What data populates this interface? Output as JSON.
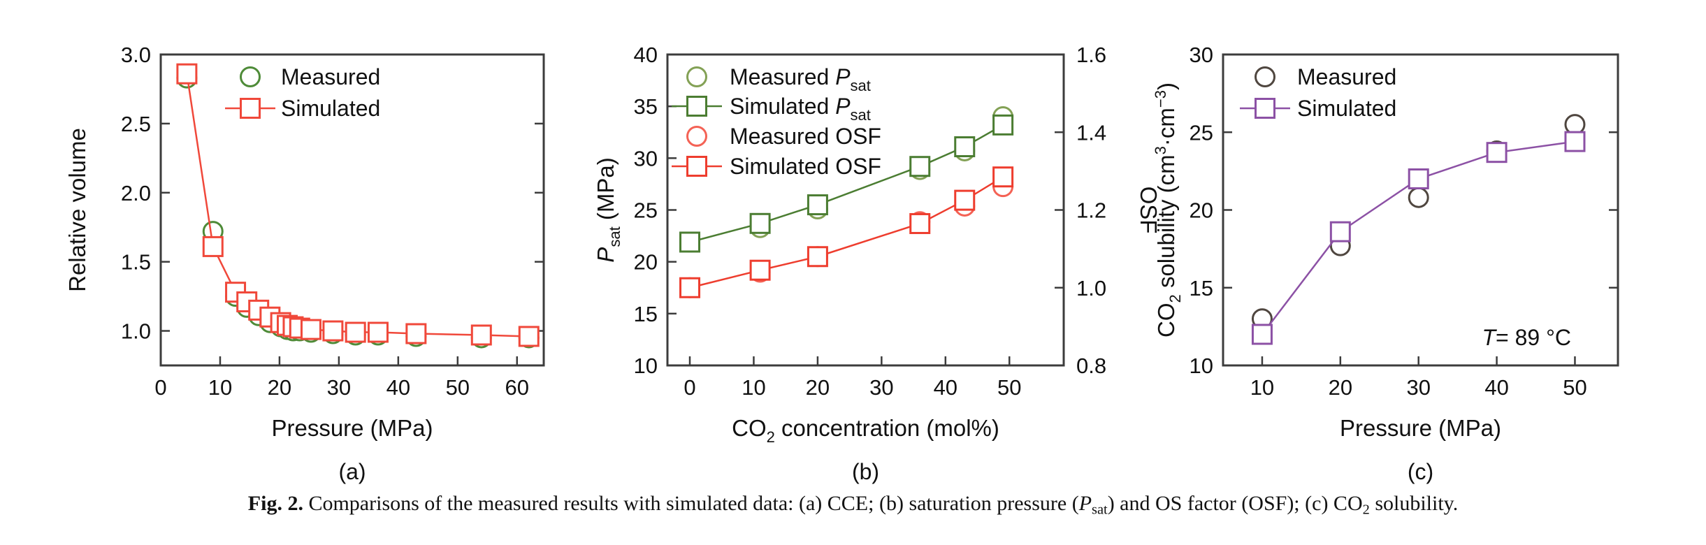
{
  "figure": {
    "background": "#ffffff",
    "caption": {
      "fig_label": "Fig. 2.",
      "segments": [
        {
          "t": " Comparisons of the measured results with simulated data: (a) CCE; (b) saturation pressure ("
        },
        {
          "t": "P",
          "s": "i"
        },
        {
          "t": "sat",
          "s": "sub"
        },
        {
          "t": ") and OS factor (OSF); (c) CO"
        },
        {
          "t": "2",
          "s": "sub"
        },
        {
          "t": " solubility."
        }
      ]
    }
  },
  "chart_data": [
    {
      "id": "a",
      "type": "line",
      "panel_label": "(a)",
      "xlabel": [
        {
          "t": "Pressure (MPa)"
        }
      ],
      "ylabel": [
        {
          "t": "Relative volume"
        }
      ],
      "xlim": [
        0,
        64.5
      ],
      "ylim": [
        0.75,
        3.0
      ],
      "xticks": [
        {
          "v": 0,
          "l": "0"
        },
        {
          "v": 10,
          "l": "10"
        },
        {
          "v": 20,
          "l": "20"
        },
        {
          "v": 30,
          "l": "30"
        },
        {
          "v": 40,
          "l": "40"
        },
        {
          "v": 50,
          "l": "50"
        },
        {
          "v": 60,
          "l": "60"
        }
      ],
      "yticks": [
        {
          "v": 1.0,
          "l": "1.0"
        },
        {
          "v": 1.5,
          "l": "1.5"
        },
        {
          "v": 2.0,
          "l": "2.0"
        },
        {
          "v": 2.5,
          "l": "2.5"
        },
        {
          "v": 3.0,
          "l": "3.0"
        }
      ],
      "grid": false,
      "legend_position": "upper-left-inside",
      "series": [
        {
          "name": "Measured",
          "name_rich": [
            {
              "t": "Measured"
            }
          ],
          "marker": "circle",
          "color": "#4e8b38",
          "line": false,
          "axis": "y1",
          "x": [
            4.4,
            8.8,
            12.6,
            14.5,
            16.5,
            18.4,
            20.2,
            21.3,
            22.3,
            23.4,
            25.3,
            29.0,
            32.8,
            36.6,
            43.0,
            54.0,
            62.0
          ],
          "y": [
            2.83,
            1.72,
            1.25,
            1.17,
            1.11,
            1.06,
            1.03,
            1.01,
            1.0,
            1.0,
            0.99,
            0.98,
            0.97,
            0.97,
            0.96,
            0.95,
            0.95
          ]
        },
        {
          "name": "Simulated",
          "name_rich": [
            {
              "t": "Simulated"
            }
          ],
          "marker": "square",
          "color": "#f0483a",
          "line": true,
          "axis": "y1",
          "x": [
            4.4,
            8.8,
            12.6,
            14.5,
            16.5,
            18.4,
            20.2,
            21.3,
            22.3,
            23.4,
            25.3,
            29.0,
            32.8,
            36.6,
            43.0,
            54.0,
            62.0
          ],
          "y": [
            2.86,
            1.61,
            1.28,
            1.21,
            1.15,
            1.1,
            1.06,
            1.04,
            1.03,
            1.02,
            1.01,
            1.0,
            0.99,
            0.99,
            0.98,
            0.97,
            0.96
          ]
        }
      ]
    },
    {
      "id": "b",
      "type": "line",
      "panel_label": "(b)",
      "xlabel": [
        {
          "t": "CO"
        },
        {
          "t": "2",
          "s": "sub"
        },
        {
          "t": " concentration (mol%)"
        }
      ],
      "ylabel": [
        {
          "t": "P",
          "s": "i"
        },
        {
          "t": "sat",
          "s": "sub"
        },
        {
          "t": " (MPa)"
        }
      ],
      "y2label": [
        {
          "t": "OSF"
        }
      ],
      "xlim": [
        -3.5,
        58.5
      ],
      "ylim": [
        10,
        40
      ],
      "y2lim": [
        0.8,
        1.6
      ],
      "xticks": [
        {
          "v": 0,
          "l": "0"
        },
        {
          "v": 10,
          "l": "10"
        },
        {
          "v": 20,
          "l": "20"
        },
        {
          "v": 30,
          "l": "30"
        },
        {
          "v": 40,
          "l": "40"
        },
        {
          "v": 50,
          "l": "50"
        }
      ],
      "yticks": [
        {
          "v": 10,
          "l": "10"
        },
        {
          "v": 15,
          "l": "15"
        },
        {
          "v": 20,
          "l": "20"
        },
        {
          "v": 25,
          "l": "25"
        },
        {
          "v": 30,
          "l": "30"
        },
        {
          "v": 35,
          "l": "35"
        },
        {
          "v": 40,
          "l": "40"
        }
      ],
      "y2ticks": [
        {
          "v": 0.8,
          "l": "0.8"
        },
        {
          "v": 1.0,
          "l": "1.0"
        },
        {
          "v": 1.2,
          "l": "1.2"
        },
        {
          "v": 1.4,
          "l": "1.4"
        },
        {
          "v": 1.6,
          "l": "1.6"
        }
      ],
      "grid": false,
      "legend_position": "upper-left-inside",
      "series": [
        {
          "name": "Measured Psat",
          "name_rich": [
            {
              "t": "Measured "
            },
            {
              "t": "P",
              "s": "i"
            },
            {
              "t": "sat",
              "s": "sub"
            }
          ],
          "marker": "circle",
          "color": "#83a155",
          "line": false,
          "axis": "y1",
          "x": [
            0,
            11,
            20,
            36,
            43,
            49
          ],
          "y": [
            21.9,
            23.3,
            25.1,
            28.9,
            30.7,
            34.0
          ]
        },
        {
          "name": "Simulated Psat",
          "name_rich": [
            {
              "t": "Simulated "
            },
            {
              "t": "P",
              "s": "i"
            },
            {
              "t": "sat",
              "s": "sub"
            }
          ],
          "marker": "square",
          "color": "#4b7d32",
          "line": true,
          "axis": "y1",
          "x": [
            0,
            11,
            20,
            36,
            43,
            49
          ],
          "y": [
            21.9,
            23.7,
            25.5,
            29.2,
            31.1,
            33.2
          ]
        },
        {
          "name": "Measured OSF",
          "name_rich": [
            {
              "t": "Measured OSF"
            }
          ],
          "marker": "circle",
          "color": "#f46255",
          "line": false,
          "axis": "y2",
          "x": [
            0,
            11,
            20,
            36,
            43,
            49
          ],
          "y": [
            1.0,
            1.04,
            1.08,
            1.17,
            1.21,
            1.26
          ]
        },
        {
          "name": "Simulated OSF",
          "name_rich": [
            {
              "t": "Simulated OSF"
            }
          ],
          "marker": "square",
          "color": "#ee3d2e",
          "line": true,
          "axis": "y2",
          "x": [
            0,
            11,
            20,
            36,
            43,
            49
          ],
          "y": [
            1.0,
            1.045,
            1.08,
            1.165,
            1.225,
            1.285
          ]
        }
      ]
    },
    {
      "id": "c",
      "type": "line",
      "panel_label": "(c)",
      "xlabel": [
        {
          "t": "Pressure (MPa)"
        }
      ],
      "ylabel": [
        {
          "t": "CO"
        },
        {
          "t": "2",
          "s": "sub"
        },
        {
          "t": " solubility (cm"
        },
        {
          "t": "3",
          "s": "sup"
        },
        {
          "t": "·cm"
        },
        {
          "t": "−3",
          "s": "sup"
        },
        {
          "t": ")"
        }
      ],
      "xlim": [
        5,
        55.5
      ],
      "ylim": [
        10,
        30
      ],
      "xticks": [
        {
          "v": 10,
          "l": "10"
        },
        {
          "v": 20,
          "l": "20"
        },
        {
          "v": 30,
          "l": "30"
        },
        {
          "v": 40,
          "l": "40"
        },
        {
          "v": 50,
          "l": "50"
        }
      ],
      "yticks": [
        {
          "v": 10,
          "l": "10"
        },
        {
          "v": 15,
          "l": "15"
        },
        {
          "v": 20,
          "l": "20"
        },
        {
          "v": 25,
          "l": "25"
        },
        {
          "v": 30,
          "l": "30"
        }
      ],
      "grid": false,
      "legend_position": "upper-left-inside",
      "annotation": {
        "rich": [
          {
            "t": "T",
            "s": "i"
          },
          {
            "t": "= 89 °C"
          }
        ]
      },
      "series": [
        {
          "name": "Measured",
          "name_rich": [
            {
              "t": "Measured"
            }
          ],
          "marker": "circle",
          "color": "#4f463f",
          "line": false,
          "axis": "y1",
          "x": [
            10,
            20,
            30,
            40,
            50
          ],
          "y": [
            13.0,
            17.7,
            20.8,
            23.8,
            25.5
          ]
        },
        {
          "name": "Simulated",
          "name_rich": [
            {
              "t": "Simulated"
            }
          ],
          "marker": "square",
          "color": "#8c51a5",
          "line": true,
          "axis": "y1",
          "x": [
            10,
            20,
            30,
            40,
            50
          ],
          "y": [
            12.0,
            18.6,
            22.0,
            23.7,
            24.4
          ]
        }
      ]
    }
  ]
}
